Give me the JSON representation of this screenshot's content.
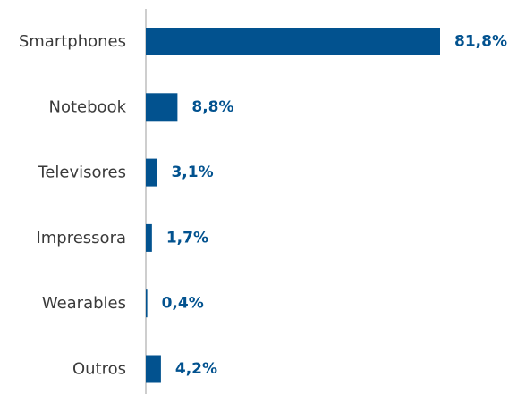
{
  "chart_data": {
    "type": "bar",
    "orientation": "horizontal",
    "title": "",
    "xlabel": "",
    "ylabel": "",
    "categories": [
      "Smartphones",
      "Notebook",
      "Televisores",
      "Impressora",
      "Wearables",
      "Outros"
    ],
    "values": [
      81.8,
      8.8,
      3.1,
      1.7,
      0.4,
      4.2
    ],
    "value_labels": [
      "81,8%",
      "8,8%",
      "3,1%",
      "1,7%",
      "0,4%",
      "4,2%"
    ],
    "unit": "%",
    "xlim": [
      0,
      81.8
    ],
    "grid": false,
    "legend": "none",
    "colors": {
      "bar": "#02528f",
      "value_label": "#02528f",
      "axis": "#bdbdbd",
      "category_label": "#3a3a3a"
    }
  }
}
